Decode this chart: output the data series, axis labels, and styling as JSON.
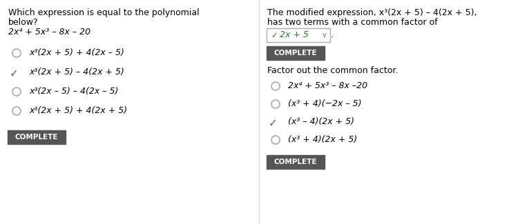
{
  "bg_color": "#ffffff",
  "left_panel": {
    "question_lines": [
      "Which expression is equal to the polynomial",
      "below?",
      "2x⁴ + 5x³ – 8x – 20"
    ],
    "options": [
      {
        "text": "x³(2x + 5) + 4(2x – 5)",
        "correct": false
      },
      {
        "text": "x³(2x + 5) – 4(2x + 5)",
        "correct": true
      },
      {
        "text": "x³(2x – 5) – 4(2x – 5)",
        "correct": false
      },
      {
        "text": "x³(2x + 5) + 4(2x + 5)",
        "correct": false
      }
    ],
    "complete_button": "COMPLETE"
  },
  "right_panel": {
    "intro_lines": [
      "The modified expression, x³(2x + 5) – 4(2x + 5),",
      "has two terms with a common factor of"
    ],
    "complete_button1": "COMPLETE",
    "factor_label": "Factor out the common factor.",
    "options2": [
      {
        "text": "2x⁴ + 5x³ – 8x –20",
        "correct": false
      },
      {
        "text": "(x³ + 4)(−2x – 5)",
        "correct": false
      },
      {
        "text": "(x³ – 4)(2x + 5)",
        "correct": true
      },
      {
        "text": "(x³ + 4)(2x + 5)",
        "correct": false
      }
    ],
    "complete_button2": "COMPLETE"
  },
  "font_size": 9,
  "check_color": "#2d7a2d",
  "circle_color": "#aaaaaa",
  "button_bg": "#555555",
  "button_fg": "#ffffff",
  "dropdown_border": "#aaaaaa",
  "divider_color": "#dddddd"
}
